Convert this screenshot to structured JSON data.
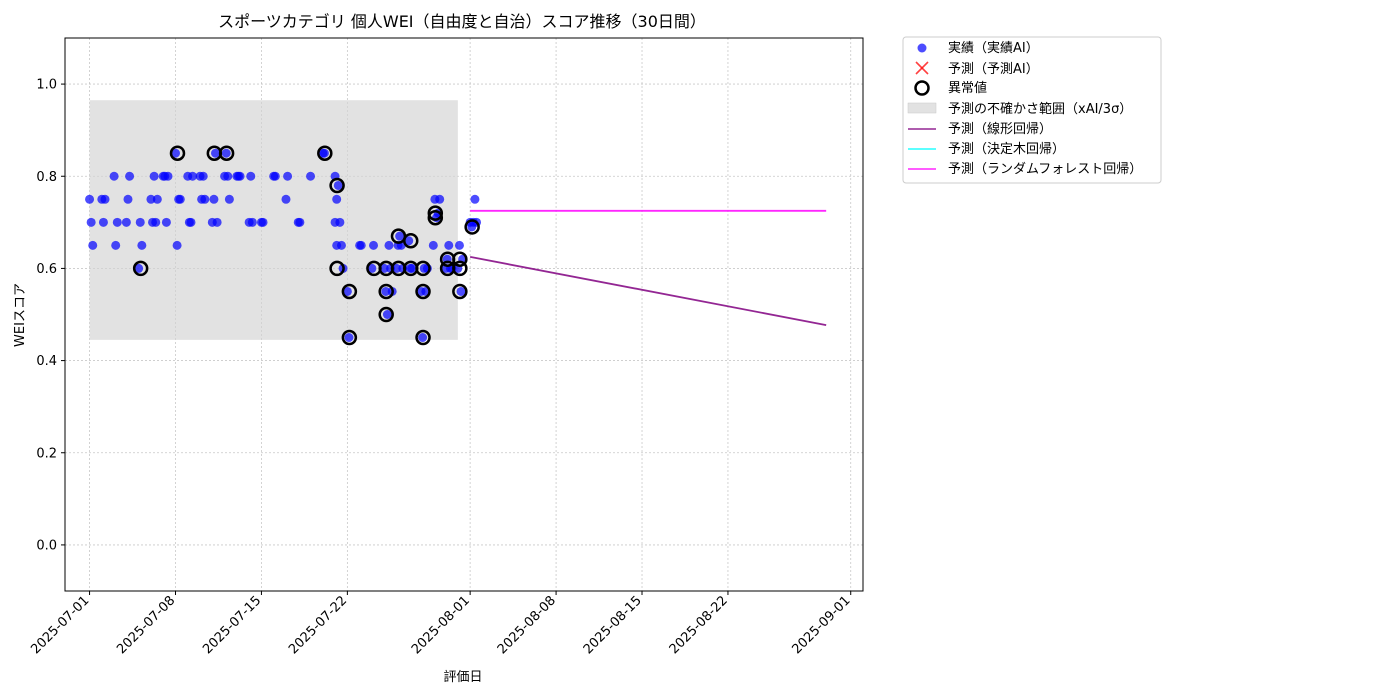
{
  "chart_data": {
    "type": "scatter",
    "title": "スポーツカテゴリ 個人WEI（自由度と自治）スコア推移（30日間）",
    "xlabel": "評価日",
    "ylabel": "WEIスコア",
    "xlim": [
      "2025-06-29",
      "2025-09-02"
    ],
    "ylim": [
      -0.1,
      1.1
    ],
    "yticks": [
      0.0,
      0.2,
      0.4,
      0.6,
      0.8,
      1.0
    ],
    "ytick_labels": [
      "0.0",
      "0.2",
      "0.4",
      "0.6",
      "0.8",
      "1.0"
    ],
    "xticks": [
      "2025-07-01",
      "2025-07-08",
      "2025-07-15",
      "2025-07-22",
      "2025-08-01",
      "2025-08-08",
      "2025-08-15",
      "2025-08-22",
      "2025-09-01"
    ],
    "grid": true,
    "legend_position": "outside-top-right",
    "legend": {
      "actual": "実績（実績AI）",
      "predicted": "予測（予測AI）",
      "anomaly": "異常値",
      "band": "予測の不確かさ範囲（xAI/3σ）",
      "linear": "予測（線形回帰）",
      "tree": "予測（決定木回帰）",
      "forest": "予測（ランダムフォレスト回帰）"
    },
    "colors": {
      "actual": "#0000ff",
      "predicted": "#ff0000",
      "anomaly": "#000000",
      "band": "#d3d3d3",
      "linear": "#800080",
      "tree": "#00ffff",
      "forest": "#ff00ff"
    },
    "uncertainty_band": {
      "x": [
        "2025-07-01",
        "2025-07-31"
      ],
      "y": [
        0.445,
        0.965
      ]
    },
    "actual": [
      {
        "x": "2025-07-01",
        "y": 0.75
      },
      {
        "x": "2025-07-01",
        "y": 0.7
      },
      {
        "x": "2025-07-01",
        "y": 0.65
      },
      {
        "x": "2025-07-02",
        "y": 0.75
      },
      {
        "x": "2025-07-02",
        "y": 0.7
      },
      {
        "x": "2025-07-02",
        "y": 0.75
      },
      {
        "x": "2025-07-03",
        "y": 0.8
      },
      {
        "x": "2025-07-03",
        "y": 0.65
      },
      {
        "x": "2025-07-03",
        "y": 0.7
      },
      {
        "x": "2025-07-04",
        "y": 0.7
      },
      {
        "x": "2025-07-04",
        "y": 0.75
      },
      {
        "x": "2025-07-04",
        "y": 0.8
      },
      {
        "x": "2025-07-05",
        "y": 0.6
      },
      {
        "x": "2025-07-05",
        "y": 0.7
      },
      {
        "x": "2025-07-05",
        "y": 0.65
      },
      {
        "x": "2025-07-06",
        "y": 0.75
      },
      {
        "x": "2025-07-06",
        "y": 0.7
      },
      {
        "x": "2025-07-06",
        "y": 0.8
      },
      {
        "x": "2025-07-06",
        "y": 0.7
      },
      {
        "x": "2025-07-06",
        "y": 0.75
      },
      {
        "x": "2025-07-07",
        "y": 0.8
      },
      {
        "x": "2025-07-07",
        "y": 0.8
      },
      {
        "x": "2025-07-07",
        "y": 0.7
      },
      {
        "x": "2025-07-07",
        "y": 0.8
      },
      {
        "x": "2025-07-08",
        "y": 0.85
      },
      {
        "x": "2025-07-08",
        "y": 0.65
      },
      {
        "x": "2025-07-08",
        "y": 0.75
      },
      {
        "x": "2025-07-08",
        "y": 0.75
      },
      {
        "x": "2025-07-09",
        "y": 0.8
      },
      {
        "x": "2025-07-09",
        "y": 0.7
      },
      {
        "x": "2025-07-09",
        "y": 0.7
      },
      {
        "x": "2025-07-09",
        "y": 0.8
      },
      {
        "x": "2025-07-10",
        "y": 0.8
      },
      {
        "x": "2025-07-10",
        "y": 0.75
      },
      {
        "x": "2025-07-10",
        "y": 0.8
      },
      {
        "x": "2025-07-10",
        "y": 0.75
      },
      {
        "x": "2025-07-11",
        "y": 0.7
      },
      {
        "x": "2025-07-11",
        "y": 0.75
      },
      {
        "x": "2025-07-11",
        "y": 0.85
      },
      {
        "x": "2025-07-11",
        "y": 0.7
      },
      {
        "x": "2025-07-12",
        "y": 0.8
      },
      {
        "x": "2025-07-12",
        "y": 0.85
      },
      {
        "x": "2025-07-12",
        "y": 0.8
      },
      {
        "x": "2025-07-12",
        "y": 0.75
      },
      {
        "x": "2025-07-13",
        "y": 0.8
      },
      {
        "x": "2025-07-13",
        "y": 0.8
      },
      {
        "x": "2025-07-13",
        "y": 0.8
      },
      {
        "x": "2025-07-14",
        "y": 0.7
      },
      {
        "x": "2025-07-14",
        "y": 0.8
      },
      {
        "x": "2025-07-14",
        "y": 0.7
      },
      {
        "x": "2025-07-15",
        "y": 0.7
      },
      {
        "x": "2025-07-15",
        "y": 0.7
      },
      {
        "x": "2025-07-16",
        "y": 0.8
      },
      {
        "x": "2025-07-16",
        "y": 0.8
      },
      {
        "x": "2025-07-17",
        "y": 0.75
      },
      {
        "x": "2025-07-17",
        "y": 0.8
      },
      {
        "x": "2025-07-18",
        "y": 0.7
      },
      {
        "x": "2025-07-18",
        "y": 0.7
      },
      {
        "x": "2025-07-19",
        "y": 0.8
      },
      {
        "x": "2025-07-20",
        "y": 0.85
      },
      {
        "x": "2025-07-20",
        "y": 0.85
      },
      {
        "x": "2025-07-21",
        "y": 0.8
      },
      {
        "x": "2025-07-21",
        "y": 0.75
      },
      {
        "x": "2025-07-21",
        "y": 0.78
      },
      {
        "x": "2025-07-21",
        "y": 0.7
      },
      {
        "x": "2025-07-21",
        "y": 0.65
      },
      {
        "x": "2025-07-21",
        "y": 0.6
      },
      {
        "x": "2025-07-21",
        "y": 0.7
      },
      {
        "x": "2025-07-21",
        "y": 0.65
      },
      {
        "x": "2025-07-22",
        "y": 0.55
      },
      {
        "x": "2025-07-22",
        "y": 0.45
      },
      {
        "x": "2025-07-23",
        "y": 0.65
      },
      {
        "x": "2025-07-23",
        "y": 0.65
      },
      {
        "x": "2025-07-24",
        "y": 0.6
      },
      {
        "x": "2025-07-24",
        "y": 0.65
      },
      {
        "x": "2025-07-25",
        "y": 0.6
      },
      {
        "x": "2025-07-25",
        "y": 0.55
      },
      {
        "x": "2025-07-25",
        "y": 0.5
      },
      {
        "x": "2025-07-25",
        "y": 0.65
      },
      {
        "x": "2025-07-25",
        "y": 0.6
      },
      {
        "x": "2025-07-25",
        "y": 0.55
      },
      {
        "x": "2025-07-26",
        "y": 0.6
      },
      {
        "x": "2025-07-26",
        "y": 0.65
      },
      {
        "x": "2025-07-26",
        "y": 0.67
      },
      {
        "x": "2025-07-26",
        "y": 0.65
      },
      {
        "x": "2025-07-26",
        "y": 0.6
      },
      {
        "x": "2025-07-27",
        "y": 0.66
      },
      {
        "x": "2025-07-27",
        "y": 0.6
      },
      {
        "x": "2025-07-27",
        "y": 0.6
      },
      {
        "x": "2025-07-28",
        "y": 0.55
      },
      {
        "x": "2025-07-28",
        "y": 0.45
      },
      {
        "x": "2025-07-28",
        "y": 0.6
      },
      {
        "x": "2025-07-28",
        "y": 0.55
      },
      {
        "x": "2025-07-28",
        "y": 0.6
      },
      {
        "x": "2025-07-29",
        "y": 0.65
      },
      {
        "x": "2025-07-29",
        "y": 0.75
      },
      {
        "x": "2025-07-29",
        "y": 0.71
      },
      {
        "x": "2025-07-29",
        "y": 0.72
      },
      {
        "x": "2025-07-29",
        "y": 0.75
      },
      {
        "x": "2025-07-30",
        "y": 0.6
      },
      {
        "x": "2025-07-30",
        "y": 0.62
      },
      {
        "x": "2025-07-30",
        "y": 0.65
      },
      {
        "x": "2025-07-30",
        "y": 0.6
      },
      {
        "x": "2025-07-30",
        "y": 0.6
      },
      {
        "x": "2025-07-31",
        "y": 0.6
      },
      {
        "x": "2025-07-31",
        "y": 0.65
      },
      {
        "x": "2025-07-31",
        "y": 0.55
      },
      {
        "x": "2025-07-31",
        "y": 0.62
      },
      {
        "x": "2025-08-01",
        "y": 0.7
      },
      {
        "x": "2025-08-01",
        "y": 0.69
      },
      {
        "x": "2025-08-01",
        "y": 0.7
      },
      {
        "x": "2025-08-01",
        "y": 0.75
      },
      {
        "x": "2025-08-01",
        "y": 0.7
      }
    ],
    "anomalies": [
      {
        "x": "2025-07-05",
        "y": 0.6
      },
      {
        "x": "2025-07-08",
        "y": 0.85
      },
      {
        "x": "2025-07-11",
        "y": 0.85
      },
      {
        "x": "2025-07-12",
        "y": 0.85
      },
      {
        "x": "2025-07-20",
        "y": 0.85
      },
      {
        "x": "2025-07-21",
        "y": 0.78
      },
      {
        "x": "2025-07-21",
        "y": 0.6
      },
      {
        "x": "2025-07-22",
        "y": 0.55
      },
      {
        "x": "2025-07-22",
        "y": 0.45
      },
      {
        "x": "2025-07-24",
        "y": 0.6
      },
      {
        "x": "2025-07-25",
        "y": 0.6
      },
      {
        "x": "2025-07-25",
        "y": 0.55
      },
      {
        "x": "2025-07-25",
        "y": 0.5
      },
      {
        "x": "2025-07-26",
        "y": 0.6
      },
      {
        "x": "2025-07-26",
        "y": 0.67
      },
      {
        "x": "2025-07-27",
        "y": 0.66
      },
      {
        "x": "2025-07-27",
        "y": 0.6
      },
      {
        "x": "2025-07-28",
        "y": 0.55
      },
      {
        "x": "2025-07-28",
        "y": 0.45
      },
      {
        "x": "2025-07-28",
        "y": 0.6
      },
      {
        "x": "2025-07-29",
        "y": 0.71
      },
      {
        "x": "2025-07-29",
        "y": 0.72
      },
      {
        "x": "2025-07-30",
        "y": 0.6
      },
      {
        "x": "2025-07-30",
        "y": 0.62
      },
      {
        "x": "2025-07-31",
        "y": 0.6
      },
      {
        "x": "2025-07-31",
        "y": 0.55
      },
      {
        "x": "2025-07-31",
        "y": 0.62
      },
      {
        "x": "2025-08-01",
        "y": 0.69
      }
    ],
    "forecast_linear": {
      "x": [
        "2025-08-01",
        "2025-08-30"
      ],
      "y": [
        0.625,
        0.477
      ]
    },
    "forecast_forest": {
      "x": [
        "2025-08-01",
        "2025-08-30"
      ],
      "y": [
        0.725,
        0.725
      ]
    }
  }
}
